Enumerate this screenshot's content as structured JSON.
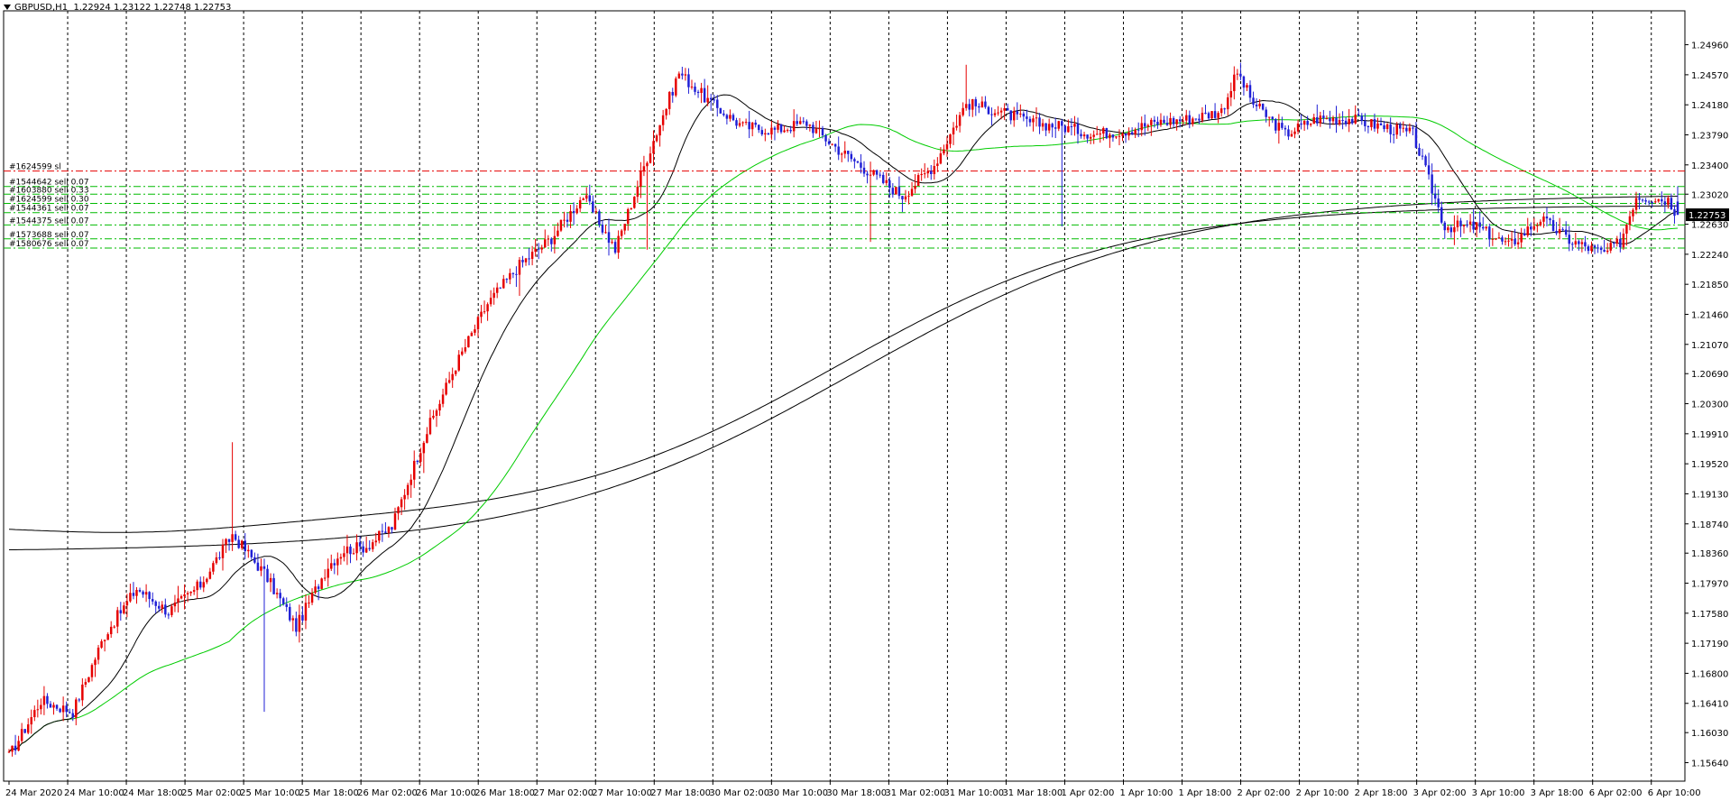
{
  "header": {
    "symbol_label": "GBPUSD,H1",
    "ohlc_label": "1.22924 1.23122 1.22748 1.22753",
    "menu_arrow_icon": "triangle-down-icon"
  },
  "chart_data": {
    "type": "candlestick",
    "symbol": "GBPUSD",
    "timeframe": "H1",
    "ohlc_last": {
      "open": 1.22924,
      "high": 1.23122,
      "low": 1.22748,
      "close": 1.22753
    },
    "ylim": [
      1.154,
      1.254
    ],
    "y_ticks": [
      "1.24960",
      "1.24570",
      "1.24180",
      "1.23790",
      "1.23400",
      "1.23020",
      "1.22630",
      "1.22240",
      "1.21850",
      "1.21460",
      "1.21070",
      "1.20690",
      "1.20300",
      "1.19910",
      "1.19520",
      "1.19130",
      "1.18740",
      "1.18360",
      "1.17970",
      "1.17580",
      "1.17190",
      "1.16800",
      "1.16410",
      "1.16030",
      "1.15640"
    ],
    "x_ticks": [
      "24 Mar 2020",
      "24 Mar 10:00",
      "24 Mar 18:00",
      "25 Mar 02:00",
      "25 Mar 10:00",
      "25 Mar 18:00",
      "26 Mar 02:00",
      "26 Mar 10:00",
      "26 Mar 18:00",
      "27 Mar 02:00",
      "27 Mar 10:00",
      "27 Mar 18:00",
      "30 Mar 02:00",
      "30 Mar 10:00",
      "30 Mar 18:00",
      "31 Mar 02:00",
      "31 Mar 10:00",
      "31 Mar 18:00",
      "1 Apr 02:00",
      "1 Apr 10:00",
      "1 Apr 18:00",
      "2 Apr 02:00",
      "2 Apr 10:00",
      "2 Apr 18:00",
      "3 Apr 02:00",
      "3 Apr 10:00",
      "3 Apr 18:00",
      "6 Apr 02:00",
      "6 Apr 10:00"
    ],
    "current_price_label": "1.22753",
    "grid": "vertical-dashed",
    "colors": {
      "bull_candle": "#e60000",
      "bear_candle": "#1f1fd6",
      "ma_fast": "#000000",
      "ma_green": "#00cc00",
      "ma_slow": "#000000",
      "order_red": "#e60000",
      "order_green": "#00bb00",
      "price_tag_bg": "#000000",
      "price_tag_text": "#ffffff"
    },
    "order_lines": [
      {
        "label": "#1624599 sl",
        "price": 1.2332,
        "color": "red"
      },
      {
        "label": "#1544642 sell 0.07",
        "price": 1.2312,
        "color": "green"
      },
      {
        "label": "#1603880 sell 0.33",
        "price": 1.2302,
        "color": "green"
      },
      {
        "label": "#1624599 sell 0.30",
        "price": 1.229,
        "color": "green"
      },
      {
        "label": "#1544361 sell 0.07",
        "price": 1.2278,
        "color": "green"
      },
      {
        "label": "#1544375 sell 0.07",
        "price": 1.2262,
        "color": "green"
      },
      {
        "label": "#1573688 sell 0.07",
        "price": 1.2244,
        "color": "green"
      },
      {
        "label": "#1580676 sell 0.07",
        "price": 1.2232,
        "color": "green"
      }
    ],
    "anchors": [
      [
        0,
        1.1572
      ],
      [
        10,
        1.1645
      ],
      [
        20,
        1.163
      ],
      [
        30,
        1.173
      ],
      [
        40,
        1.179
      ],
      [
        50,
        1.176
      ],
      [
        60,
        1.1795
      ],
      [
        70,
        1.186
      ],
      [
        80,
        1.181
      ],
      [
        90,
        1.174
      ],
      [
        100,
        1.182
      ],
      [
        105,
        1.184
      ],
      [
        112,
        1.1845
      ],
      [
        120,
        1.187
      ],
      [
        130,
        1.1985
      ],
      [
        140,
        1.208
      ],
      [
        150,
        1.216
      ],
      [
        160,
        1.221
      ],
      [
        170,
        1.2245
      ],
      [
        180,
        1.23
      ],
      [
        190,
        1.223
      ],
      [
        200,
        1.235
      ],
      [
        210,
        1.246
      ],
      [
        220,
        1.242
      ],
      [
        230,
        1.239
      ],
      [
        240,
        1.2385
      ],
      [
        250,
        1.2395
      ],
      [
        260,
        1.236
      ],
      [
        270,
        1.233
      ],
      [
        280,
        1.23
      ],
      [
        290,
        1.234
      ],
      [
        300,
        1.242
      ],
      [
        310,
        1.241
      ],
      [
        320,
        1.2395
      ],
      [
        330,
        1.239
      ],
      [
        340,
        1.238
      ],
      [
        350,
        1.2385
      ],
      [
        360,
        1.2395
      ],
      [
        370,
        1.24
      ],
      [
        380,
        1.241
      ],
      [
        385,
        1.246
      ],
      [
        390,
        1.242
      ],
      [
        400,
        1.238
      ],
      [
        410,
        1.24
      ],
      [
        420,
        1.24
      ],
      [
        430,
        1.239
      ],
      [
        440,
        1.238
      ],
      [
        450,
        1.226
      ],
      [
        460,
        1.226
      ],
      [
        470,
        1.2235
      ],
      [
        480,
        1.227
      ],
      [
        490,
        1.224
      ],
      [
        500,
        1.2225
      ],
      [
        505,
        1.224
      ],
      [
        510,
        1.23
      ],
      [
        520,
        1.2295
      ],
      [
        523,
        1.2275
      ]
    ],
    "spikes": [
      [
        330,
        1.226
      ],
      [
        270,
        1.224
      ],
      [
        300,
        1.247
      ],
      [
        200,
        1.223
      ],
      [
        160,
        1.217
      ],
      [
        130,
        1.194
      ],
      [
        80,
        1.163
      ],
      [
        70,
        1.198
      ]
    ],
    "n_candles": 524
  }
}
